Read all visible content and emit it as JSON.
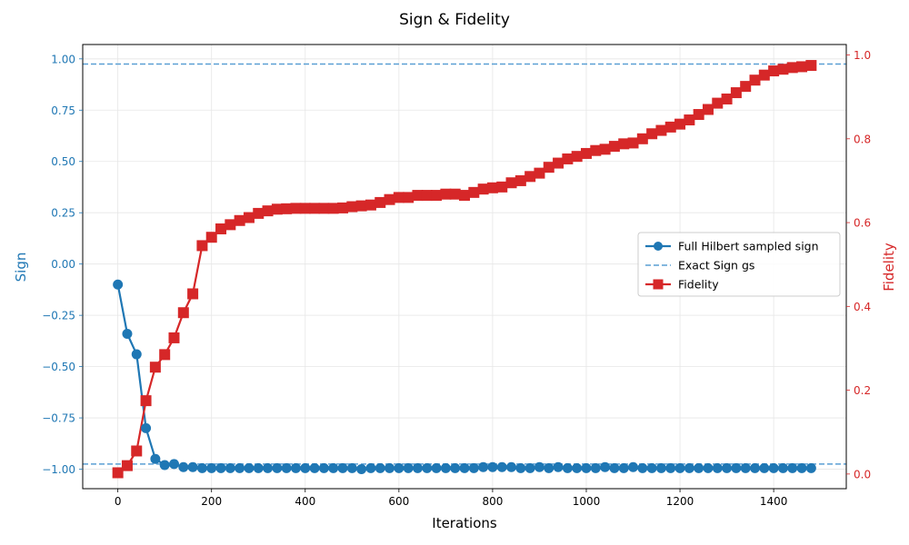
{
  "chart_data": {
    "type": "line",
    "title": "Sign & Fidelity",
    "xlabel": "Iterations",
    "ylabel_left": "Sign",
    "ylabel_right": "Fidelity",
    "xlim": [
      -75,
      1555
    ],
    "ylim_left": [
      -1.095,
      1.07
    ],
    "ylim_right": [
      -0.035,
      1.025
    ],
    "x_ticks": [
      0,
      200,
      400,
      600,
      800,
      1000,
      1200,
      1400
    ],
    "y_left_ticks": [
      -1.0,
      -0.75,
      -0.5,
      -0.25,
      0.0,
      0.25,
      0.5,
      0.75,
      1.0
    ],
    "y_left_tick_labels": [
      "−1.00",
      "−0.75",
      "−0.50",
      "−0.25",
      "0.00",
      "0.25",
      "0.50",
      "0.75",
      "1.00"
    ],
    "y_right_ticks": [
      0.0,
      0.2,
      0.4,
      0.6,
      0.8,
      1.0
    ],
    "y_right_tick_labels": [
      "0.0",
      "0.2",
      "0.4",
      "0.6",
      "0.8",
      "1.0"
    ],
    "grid": true,
    "legend_position": "center-right",
    "colors": {
      "sign": "#1f77b4",
      "exact": "#5a9fd4",
      "fidelity": "#d62728"
    },
    "x": [
      0,
      20,
      40,
      60,
      80,
      100,
      120,
      140,
      160,
      180,
      200,
      220,
      240,
      260,
      280,
      300,
      320,
      340,
      360,
      380,
      400,
      420,
      440,
      460,
      480,
      500,
      520,
      540,
      560,
      580,
      600,
      620,
      640,
      660,
      680,
      700,
      720,
      740,
      760,
      780,
      800,
      820,
      840,
      860,
      880,
      900,
      920,
      940,
      960,
      980,
      1000,
      1020,
      1040,
      1060,
      1080,
      1100,
      1120,
      1140,
      1160,
      1180,
      1200,
      1220,
      1240,
      1260,
      1280,
      1300,
      1320,
      1340,
      1360,
      1380,
      1400,
      1420,
      1440,
      1460,
      1480
    ],
    "series": [
      {
        "name": "Full Hilbert sampled sign",
        "axis": "left",
        "marker": "circle",
        "values": [
          -0.1,
          -0.34,
          -0.44,
          -0.8,
          -0.95,
          -0.98,
          -0.975,
          -0.99,
          -0.99,
          -0.995,
          -0.995,
          -0.995,
          -0.995,
          -0.995,
          -0.995,
          -0.995,
          -0.995,
          -0.995,
          -0.995,
          -0.995,
          -0.995,
          -0.995,
          -0.995,
          -0.995,
          -0.995,
          -0.995,
          -1.0,
          -0.995,
          -0.995,
          -0.995,
          -0.995,
          -0.995,
          -0.995,
          -0.995,
          -0.995,
          -0.995,
          -0.995,
          -0.995,
          -0.995,
          -0.99,
          -0.99,
          -0.99,
          -0.99,
          -0.995,
          -0.995,
          -0.99,
          -0.995,
          -0.99,
          -0.995,
          -0.995,
          -0.995,
          -0.995,
          -0.99,
          -0.995,
          -0.995,
          -0.99,
          -0.995,
          -0.995,
          -0.995,
          -0.995,
          -0.995,
          -0.995,
          -0.995,
          -0.995,
          -0.995,
          -0.995,
          -0.995,
          -0.995,
          -0.995,
          -0.995,
          -0.995,
          -0.995,
          -0.995,
          -0.995,
          -0.995
        ]
      },
      {
        "name": "Exact Sign gs",
        "axis": "left",
        "style": "dashed",
        "hlines": [
          0.975,
          -0.975
        ]
      },
      {
        "name": "Fidelity",
        "axis": "right",
        "marker": "square",
        "values": [
          0.003,
          0.02,
          0.055,
          0.175,
          0.255,
          0.285,
          0.325,
          0.385,
          0.43,
          0.545,
          0.565,
          0.585,
          0.595,
          0.605,
          0.612,
          0.622,
          0.628,
          0.632,
          0.633,
          0.634,
          0.634,
          0.634,
          0.634,
          0.634,
          0.635,
          0.638,
          0.64,
          0.642,
          0.648,
          0.655,
          0.66,
          0.66,
          0.665,
          0.665,
          0.665,
          0.668,
          0.668,
          0.665,
          0.672,
          0.68,
          0.683,
          0.685,
          0.695,
          0.7,
          0.71,
          0.718,
          0.732,
          0.742,
          0.752,
          0.758,
          0.765,
          0.772,
          0.775,
          0.782,
          0.788,
          0.79,
          0.8,
          0.812,
          0.82,
          0.828,
          0.835,
          0.845,
          0.858,
          0.87,
          0.885,
          0.895,
          0.91,
          0.925,
          0.94,
          0.952,
          0.962,
          0.966,
          0.97,
          0.972,
          0.975
        ]
      }
    ]
  }
}
